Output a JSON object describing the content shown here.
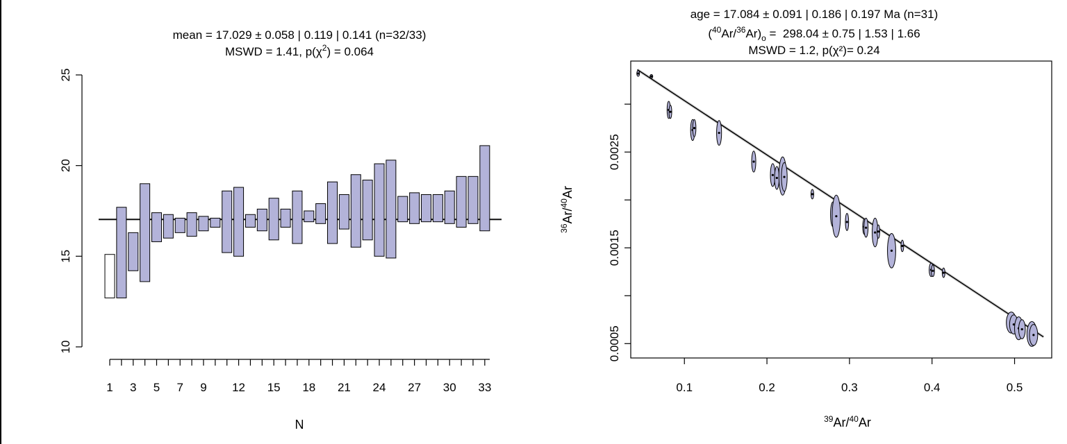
{
  "colors": {
    "fill": "#b3b3d9",
    "stroke": "#000000",
    "line": "#000000",
    "band": "#b3b3b3",
    "rejected_fill": "#ffffff"
  },
  "chart_data": [
    {
      "type": "bar",
      "title": "mean = 17.029 ± 0.058 | 0.119 | 0.141  (n=32/33)",
      "subtitle": "MSWD = 1.41, p(χ²) = 0.064",
      "title_parts": {
        "line1": "mean = 17.029 ± 0.058 | 0.119 | 0.141  (n=32/33)",
        "line2_pre": "MSWD = 1.41, p(χ",
        "line2_sup": "2",
        "line2_post": ") = 0.064"
      },
      "xlabel": "N",
      "ylabel": "",
      "ylim": [
        10,
        25
      ],
      "yticks": [
        "10",
        "15",
        "20",
        "25"
      ],
      "xtick_labels": [
        "1",
        "3",
        "5",
        "7",
        "9",
        "12",
        "15",
        "18",
        "21",
        "24",
        "27",
        "30",
        "33"
      ],
      "mean": 17.029,
      "mean_band": [
        16.97,
        17.09
      ],
      "categories": [
        "1",
        "2",
        "3",
        "4",
        "5",
        "6",
        "7",
        "8",
        "9",
        "10",
        "11",
        "12",
        "13",
        "14",
        "15",
        "16",
        "17",
        "18",
        "19",
        "20",
        "21",
        "22",
        "23",
        "24",
        "25",
        "26",
        "27",
        "28",
        "29",
        "30",
        "31",
        "32",
        "33"
      ],
      "bars": [
        {
          "lo": 12.7,
          "hi": 15.1,
          "rejected": true
        },
        {
          "lo": 12.7,
          "hi": 17.7
        },
        {
          "lo": 14.2,
          "hi": 16.3
        },
        {
          "lo": 13.6,
          "hi": 19.0
        },
        {
          "lo": 15.8,
          "hi": 17.4
        },
        {
          "lo": 16.0,
          "hi": 17.3
        },
        {
          "lo": 16.3,
          "hi": 17.1
        },
        {
          "lo": 16.1,
          "hi": 17.4
        },
        {
          "lo": 16.4,
          "hi": 17.2
        },
        {
          "lo": 16.6,
          "hi": 17.1
        },
        {
          "lo": 15.2,
          "hi": 18.6
        },
        {
          "lo": 15.0,
          "hi": 18.8
        },
        {
          "lo": 16.6,
          "hi": 17.3
        },
        {
          "lo": 16.4,
          "hi": 17.6
        },
        {
          "lo": 15.9,
          "hi": 18.2
        },
        {
          "lo": 16.6,
          "hi": 17.6
        },
        {
          "lo": 15.7,
          "hi": 18.6
        },
        {
          "lo": 16.9,
          "hi": 17.5
        },
        {
          "lo": 16.8,
          "hi": 17.9
        },
        {
          "lo": 15.7,
          "hi": 19.1
        },
        {
          "lo": 16.5,
          "hi": 18.4
        },
        {
          "lo": 15.5,
          "hi": 19.5
        },
        {
          "lo": 15.9,
          "hi": 19.2
        },
        {
          "lo": 15.0,
          "hi": 20.1
        },
        {
          "lo": 14.9,
          "hi": 20.3
        },
        {
          "lo": 16.9,
          "hi": 18.3
        },
        {
          "lo": 16.8,
          "hi": 18.5
        },
        {
          "lo": 16.9,
          "hi": 18.4
        },
        {
          "lo": 16.9,
          "hi": 18.4
        },
        {
          "lo": 16.8,
          "hi": 18.6
        },
        {
          "lo": 16.6,
          "hi": 19.4
        },
        {
          "lo": 16.8,
          "hi": 19.4
        },
        {
          "lo": 16.4,
          "hi": 21.1
        }
      ]
    },
    {
      "type": "scatter",
      "title": "age = 17.084 ± 0.091 | 0.186 | 0.197 Ma (n=31)",
      "title_parts": {
        "line1": "age = 17.084 ± 0.091 | 0.186 | 0.197 Ma (n=31)",
        "line2_a": "(",
        "line2_sup1": "40",
        "line2_b": "Ar/",
        "line2_sup2": "36",
        "line2_c": "Ar)",
        "line2_sub": "o",
        "line2_d": " =  298.04 ± 0.75 | 1.53 | 1.66",
        "line3": "MSWD = 1.2, p(χ²)= 0.24"
      },
      "xlabel": "³⁹Ar/⁴⁰Ar",
      "ylabel": "³⁶Ar/⁴⁰Ar",
      "xlabel_parts": {
        "sup1": "39",
        "a": "Ar/",
        "sup2": "40",
        "b": "Ar"
      },
      "ylabel_parts": {
        "sup1": "36",
        "a": "Ar/",
        "sup2": "40",
        "b": "Ar"
      },
      "xlim": [
        0.035,
        0.545
      ],
      "ylim": [
        0.00035,
        0.00345
      ],
      "xticks": [
        "0.1",
        "0.2",
        "0.3",
        "0.4",
        "0.5"
      ],
      "yticks": [
        "0.0005",
        "0.0015",
        "0.0025"
      ],
      "isochron": {
        "x": [
          0.043,
          0.535
        ],
        "y": [
          0.00336,
          0.00057
        ]
      },
      "points": [
        {
          "x": 0.044,
          "y": 0.00332,
          "sx": 0.0012,
          "sy": 3e-05
        },
        {
          "x": 0.06,
          "y": 0.00329,
          "sx": 0.0008,
          "sy": 2e-05
        },
        {
          "x": 0.081,
          "y": 0.00294,
          "sx": 0.002,
          "sy": 9e-05
        },
        {
          "x": 0.083,
          "y": 0.00292,
          "sx": 0.0015,
          "sy": 7e-05
        },
        {
          "x": 0.11,
          "y": 0.00273,
          "sx": 0.0025,
          "sy": 0.00011
        },
        {
          "x": 0.112,
          "y": 0.00275,
          "sx": 0.002,
          "sy": 9e-05
        },
        {
          "x": 0.142,
          "y": 0.0027,
          "sx": 0.003,
          "sy": 0.00013
        },
        {
          "x": 0.184,
          "y": 0.0024,
          "sx": 0.0025,
          "sy": 0.00011
        },
        {
          "x": 0.207,
          "y": 0.00226,
          "sx": 0.0028,
          "sy": 0.00012
        },
        {
          "x": 0.212,
          "y": 0.00223,
          "sx": 0.0028,
          "sy": 0.00012
        },
        {
          "x": 0.219,
          "y": 0.00225,
          "sx": 0.0045,
          "sy": 0.0002
        },
        {
          "x": 0.221,
          "y": 0.00224,
          "sx": 0.0035,
          "sy": 0.00015
        },
        {
          "x": 0.255,
          "y": 0.00206,
          "sx": 0.001,
          "sy": 5e-05
        },
        {
          "x": 0.28,
          "y": 0.00185,
          "sx": 0.003,
          "sy": 0.00013
        },
        {
          "x": 0.284,
          "y": 0.00183,
          "sx": 0.005,
          "sy": 0.00022
        },
        {
          "x": 0.297,
          "y": 0.00177,
          "sx": 0.002,
          "sy": 9e-05
        },
        {
          "x": 0.318,
          "y": 0.00172,
          "sx": 0.002,
          "sy": 8e-05
        },
        {
          "x": 0.32,
          "y": 0.00171,
          "sx": 0.0025,
          "sy": 0.0001
        },
        {
          "x": 0.331,
          "y": 0.00166,
          "sx": 0.0035,
          "sy": 0.00015
        },
        {
          "x": 0.335,
          "y": 0.00167,
          "sx": 0.0015,
          "sy": 7e-05
        },
        {
          "x": 0.351,
          "y": 0.00147,
          "sx": 0.005,
          "sy": 0.00018
        },
        {
          "x": 0.364,
          "y": 0.00152,
          "sx": 0.0015,
          "sy": 6e-05
        },
        {
          "x": 0.399,
          "y": 0.00127,
          "sx": 0.0025,
          "sy": 7e-05
        },
        {
          "x": 0.401,
          "y": 0.00126,
          "sx": 0.002,
          "sy": 6e-05
        },
        {
          "x": 0.414,
          "y": 0.00124,
          "sx": 0.001,
          "sy": 5e-05
        },
        {
          "x": 0.496,
          "y": 0.00072,
          "sx": 0.006,
          "sy": 0.00011
        },
        {
          "x": 0.499,
          "y": 0.0007,
          "sx": 0.005,
          "sy": 0.0001
        },
        {
          "x": 0.505,
          "y": 0.00066,
          "sx": 0.005,
          "sy": 0.00012
        },
        {
          "x": 0.509,
          "y": 0.00065,
          "sx": 0.004,
          "sy": 0.0001
        },
        {
          "x": 0.521,
          "y": 0.0006,
          "sx": 0.006,
          "sy": 0.00013
        },
        {
          "x": 0.523,
          "y": 0.00059,
          "sx": 0.005,
          "sy": 0.00011
        }
      ]
    }
  ]
}
